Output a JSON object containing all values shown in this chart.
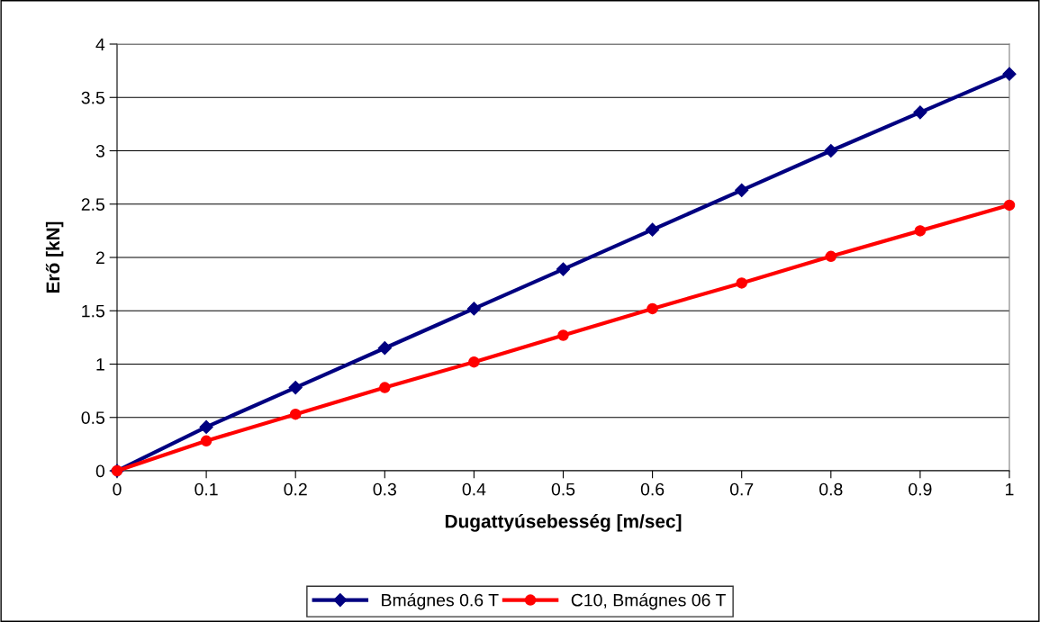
{
  "chart_data": {
    "type": "line",
    "xlabel": "Dugattyúsebesség [m/sec]",
    "ylabel": "Erő [kN]",
    "x": [
      0,
      0.1,
      0.2,
      0.3,
      0.4,
      0.5,
      0.6,
      0.7,
      0.8,
      0.9,
      1
    ],
    "series": [
      {
        "name": "Bmágnes 0.6 T",
        "color": "#000080",
        "marker": "diamond",
        "values": [
          0,
          0.41,
          0.78,
          1.15,
          1.52,
          1.89,
          2.26,
          2.63,
          3.0,
          3.36,
          3.72
        ]
      },
      {
        "name": "C10, Bmágnes 06 T",
        "color": "#ff0000",
        "marker": "circle",
        "values": [
          0,
          0.28,
          0.53,
          0.78,
          1.02,
          1.27,
          1.52,
          1.76,
          2.01,
          2.25,
          2.49
        ]
      }
    ],
    "xlim": [
      0,
      1
    ],
    "xticks": [
      0,
      0.1,
      0.2,
      0.3,
      0.4,
      0.5,
      0.6,
      0.7,
      0.8,
      0.9,
      1
    ],
    "ylim": [
      0,
      4
    ],
    "yticks": [
      0,
      0.5,
      1,
      1.5,
      2,
      2.5,
      3,
      3.5,
      4
    ],
    "grid": "y",
    "legend": "bottom",
    "line_style": "solid"
  }
}
